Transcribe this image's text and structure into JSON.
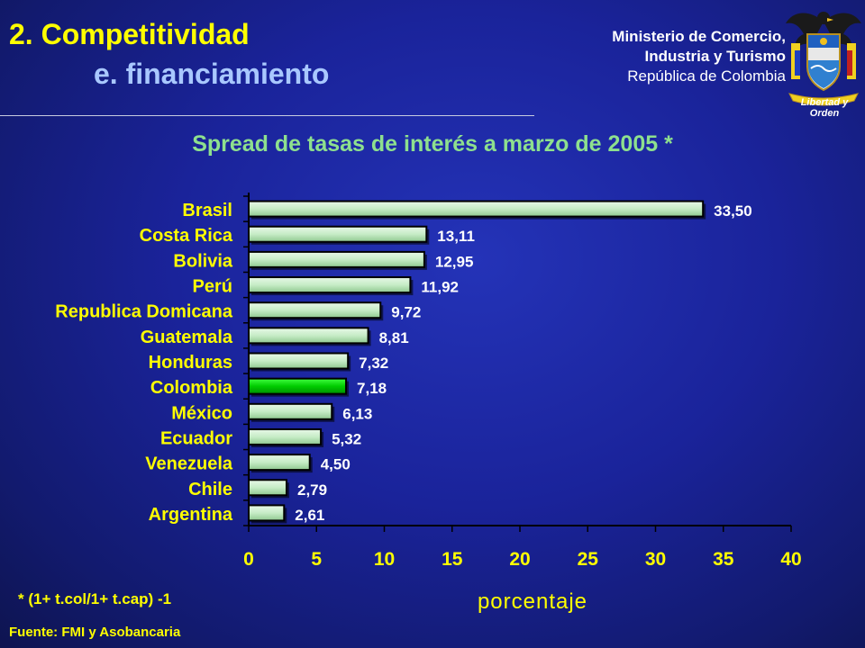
{
  "header": {
    "title_line1": "2. Competitividad",
    "title_line2": "e. financiamiento",
    "ministry_line1": "Ministerio de Comercio,",
    "ministry_line2": "Industria y Turismo",
    "ministry_line3": "República de Colombia",
    "motto": "Libertad y Orden"
  },
  "colors": {
    "title": "#ffff00",
    "subtitle": "#a9c8ff",
    "chart_title": "#8ee08e",
    "bar_fill": "#c6ecc6",
    "highlight_fill": "#00cc00",
    "axis_text": "#ffff00"
  },
  "icons": {
    "seal": "colombia-coat-of-arms-icon"
  },
  "chart_data": {
    "type": "bar",
    "orientation": "horizontal",
    "title": "Spread de tasas de interés a marzo de 2005 *",
    "xlabel": "porcentaje",
    "ylabel": "",
    "categories": [
      "Brasil",
      "Costa Rica",
      "Bolivia",
      "Perú",
      "Republica Domicana",
      "Guatemala",
      "Honduras",
      "Colombia",
      "México",
      "Ecuador",
      "Venezuela",
      "Chile",
      "Argentina"
    ],
    "values": [
      33.5,
      13.11,
      12.95,
      11.92,
      9.72,
      8.81,
      7.32,
      7.18,
      6.13,
      5.32,
      4.5,
      2.79,
      2.61
    ],
    "value_labels": [
      "33,50",
      "13,11",
      "12,95",
      "11,92",
      "9,72",
      "8,81",
      "7,32",
      "7,18",
      "6,13",
      "5,32",
      "4,50",
      "2,79",
      "2,61"
    ],
    "highlight": "Colombia",
    "xlim": [
      0,
      40
    ],
    "xticks": [
      0,
      5,
      10,
      15,
      20,
      25,
      30,
      35,
      40
    ],
    "grid": false,
    "legend": "none"
  },
  "footnote": "* (1+ t.col/1+ t.cap) -1",
  "source": "Fuente: FMI y Asobancaria"
}
